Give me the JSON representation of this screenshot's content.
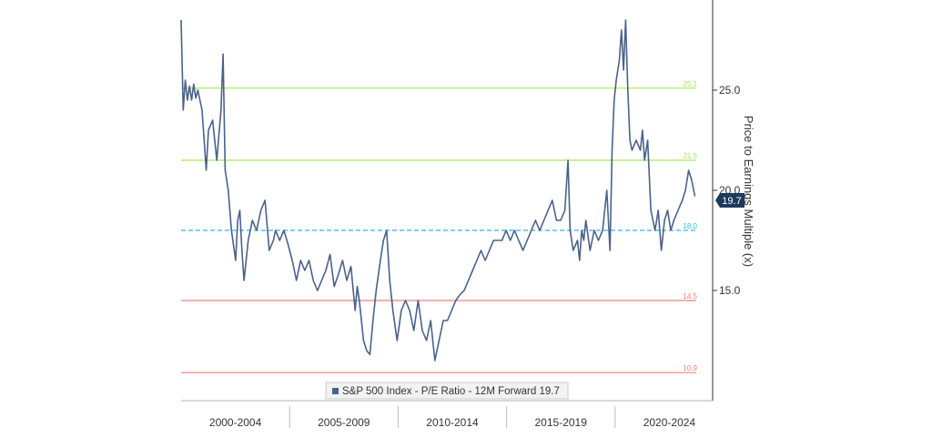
{
  "chart_data": {
    "type": "line",
    "ylabel": "Price to Earnings Multiple (x)",
    "ylim": [
      9.5,
      29.5
    ],
    "y_ticks": [
      "15.0",
      "20.0",
      "25.0"
    ],
    "x_periods": [
      "2000-2004",
      "2005-2009",
      "2010-2014",
      "2015-2019",
      "2020-2024"
    ],
    "xlim": [
      1999.5,
      2024.5
    ],
    "grid": false,
    "legend_position": "bottom-center",
    "reference_lines": [
      {
        "label": "25.1",
        "value": 25.1,
        "color": "#a6e65a",
        "style": "solid"
      },
      {
        "label": "21.5",
        "value": 21.5,
        "color": "#a6e65a",
        "style": "solid"
      },
      {
        "label": "18.0",
        "value": 18.0,
        "color": "#33b5e5",
        "style": "dashed"
      },
      {
        "label": "14.5",
        "value": 14.5,
        "color": "#f08080",
        "style": "solid"
      },
      {
        "label": "10.9",
        "value": 10.9,
        "color": "#f08080",
        "style": "solid"
      }
    ],
    "series": [
      {
        "name": "S&P 500 Index - P/E Ratio - 12M Forward",
        "last_value": "19.7",
        "color": "#4a6289",
        "points": [
          [
            1999.5,
            28.5
          ],
          [
            1999.6,
            24.0
          ],
          [
            1999.7,
            25.5
          ],
          [
            1999.8,
            24.5
          ],
          [
            1999.9,
            25.2
          ],
          [
            2000.0,
            24.5
          ],
          [
            2000.1,
            25.3
          ],
          [
            2000.2,
            24.6
          ],
          [
            2000.3,
            25.0
          ],
          [
            2000.5,
            24.0
          ],
          [
            2000.7,
            21.0
          ],
          [
            2000.8,
            23.0
          ],
          [
            2001.0,
            23.5
          ],
          [
            2001.2,
            21.5
          ],
          [
            2001.4,
            24.0
          ],
          [
            2001.5,
            26.8
          ],
          [
            2001.6,
            21.0
          ],
          [
            2001.75,
            20.0
          ],
          [
            2001.9,
            18.0
          ],
          [
            2002.1,
            16.5
          ],
          [
            2002.2,
            18.5
          ],
          [
            2002.3,
            19.0
          ],
          [
            2002.4,
            17.0
          ],
          [
            2002.5,
            15.5
          ],
          [
            2002.7,
            17.5
          ],
          [
            2002.9,
            18.5
          ],
          [
            2003.1,
            18.0
          ],
          [
            2003.3,
            19.0
          ],
          [
            2003.5,
            19.5
          ],
          [
            2003.7,
            17.0
          ],
          [
            2003.9,
            17.5
          ],
          [
            2004.0,
            18.0
          ],
          [
            2004.2,
            17.5
          ],
          [
            2004.4,
            18.0
          ],
          [
            2004.6,
            17.3
          ],
          [
            2004.8,
            16.5
          ],
          [
            2005.0,
            15.5
          ],
          [
            2005.2,
            16.5
          ],
          [
            2005.4,
            16.0
          ],
          [
            2005.6,
            16.5
          ],
          [
            2005.8,
            15.5
          ],
          [
            2006.0,
            15.0
          ],
          [
            2006.2,
            15.5
          ],
          [
            2006.4,
            16.0
          ],
          [
            2006.6,
            16.8
          ],
          [
            2006.8,
            15.2
          ],
          [
            2007.0,
            15.8
          ],
          [
            2007.2,
            16.5
          ],
          [
            2007.4,
            15.5
          ],
          [
            2007.6,
            16.2
          ],
          [
            2007.8,
            14.0
          ],
          [
            2007.9,
            15.2
          ],
          [
            2008.0,
            14.5
          ],
          [
            2008.2,
            12.5
          ],
          [
            2008.35,
            12.0
          ],
          [
            2008.5,
            11.8
          ],
          [
            2008.65,
            13.5
          ],
          [
            2008.8,
            15.0
          ],
          [
            2009.0,
            16.5
          ],
          [
            2009.15,
            17.5
          ],
          [
            2009.3,
            18.0
          ],
          [
            2009.45,
            15.5
          ],
          [
            2009.6,
            14.0
          ],
          [
            2009.8,
            12.5
          ],
          [
            2010.0,
            14.0
          ],
          [
            2010.2,
            14.5
          ],
          [
            2010.4,
            14.0
          ],
          [
            2010.6,
            13.0
          ],
          [
            2010.8,
            14.5
          ],
          [
            2011.0,
            13.0
          ],
          [
            2011.2,
            12.5
          ],
          [
            2011.4,
            13.5
          ],
          [
            2011.6,
            11.5
          ],
          [
            2011.8,
            12.5
          ],
          [
            2012.0,
            13.5
          ],
          [
            2012.2,
            13.5
          ],
          [
            2012.4,
            14.0
          ],
          [
            2012.6,
            14.5
          ],
          [
            2012.8,
            14.8
          ],
          [
            2013.0,
            15.0
          ],
          [
            2013.2,
            15.5
          ],
          [
            2013.4,
            16.0
          ],
          [
            2013.6,
            16.5
          ],
          [
            2013.8,
            17.0
          ],
          [
            2014.0,
            16.5
          ],
          [
            2014.2,
            17.0
          ],
          [
            2014.4,
            17.5
          ],
          [
            2014.6,
            17.5
          ],
          [
            2014.8,
            17.5
          ],
          [
            2015.0,
            18.0
          ],
          [
            2015.2,
            17.5
          ],
          [
            2015.4,
            18.0
          ],
          [
            2015.6,
            17.5
          ],
          [
            2015.8,
            17.0
          ],
          [
            2016.0,
            17.5
          ],
          [
            2016.2,
            18.0
          ],
          [
            2016.4,
            18.5
          ],
          [
            2016.6,
            18.0
          ],
          [
            2016.8,
            18.5
          ],
          [
            2017.0,
            19.0
          ],
          [
            2017.2,
            19.5
          ],
          [
            2017.4,
            18.5
          ],
          [
            2017.6,
            18.5
          ],
          [
            2017.8,
            19.0
          ],
          [
            2017.95,
            21.5
          ],
          [
            2018.05,
            18.0
          ],
          [
            2018.2,
            17.0
          ],
          [
            2018.4,
            17.5
          ],
          [
            2018.5,
            16.5
          ],
          [
            2018.6,
            18.0
          ],
          [
            2018.7,
            17.5
          ],
          [
            2018.8,
            18.5
          ],
          [
            2019.0,
            17.0
          ],
          [
            2019.2,
            18.0
          ],
          [
            2019.4,
            17.5
          ],
          [
            2019.6,
            18.0
          ],
          [
            2019.8,
            20.0
          ],
          [
            2019.95,
            17.0
          ],
          [
            2020.05,
            22.0
          ],
          [
            2020.15,
            24.5
          ],
          [
            2020.25,
            25.5
          ],
          [
            2020.4,
            26.5
          ],
          [
            2020.5,
            28.0
          ],
          [
            2020.6,
            26.0
          ],
          [
            2020.7,
            28.5
          ],
          [
            2020.8,
            25.0
          ],
          [
            2020.9,
            22.5
          ],
          [
            2021.0,
            22.0
          ],
          [
            2021.2,
            22.5
          ],
          [
            2021.4,
            22.0
          ],
          [
            2021.5,
            23.0
          ],
          [
            2021.6,
            21.5
          ],
          [
            2021.75,
            22.5
          ],
          [
            2021.9,
            19.0
          ],
          [
            2022.1,
            18.0
          ],
          [
            2022.25,
            19.0
          ],
          [
            2022.4,
            17.0
          ],
          [
            2022.55,
            18.5
          ],
          [
            2022.7,
            19.0
          ],
          [
            2022.85,
            18.0
          ],
          [
            2023.0,
            18.5
          ],
          [
            2023.2,
            19.0
          ],
          [
            2023.4,
            19.5
          ],
          [
            2023.55,
            20.0
          ],
          [
            2023.7,
            21.0
          ],
          [
            2023.85,
            20.5
          ],
          [
            2024.0,
            19.7
          ]
        ]
      }
    ]
  }
}
